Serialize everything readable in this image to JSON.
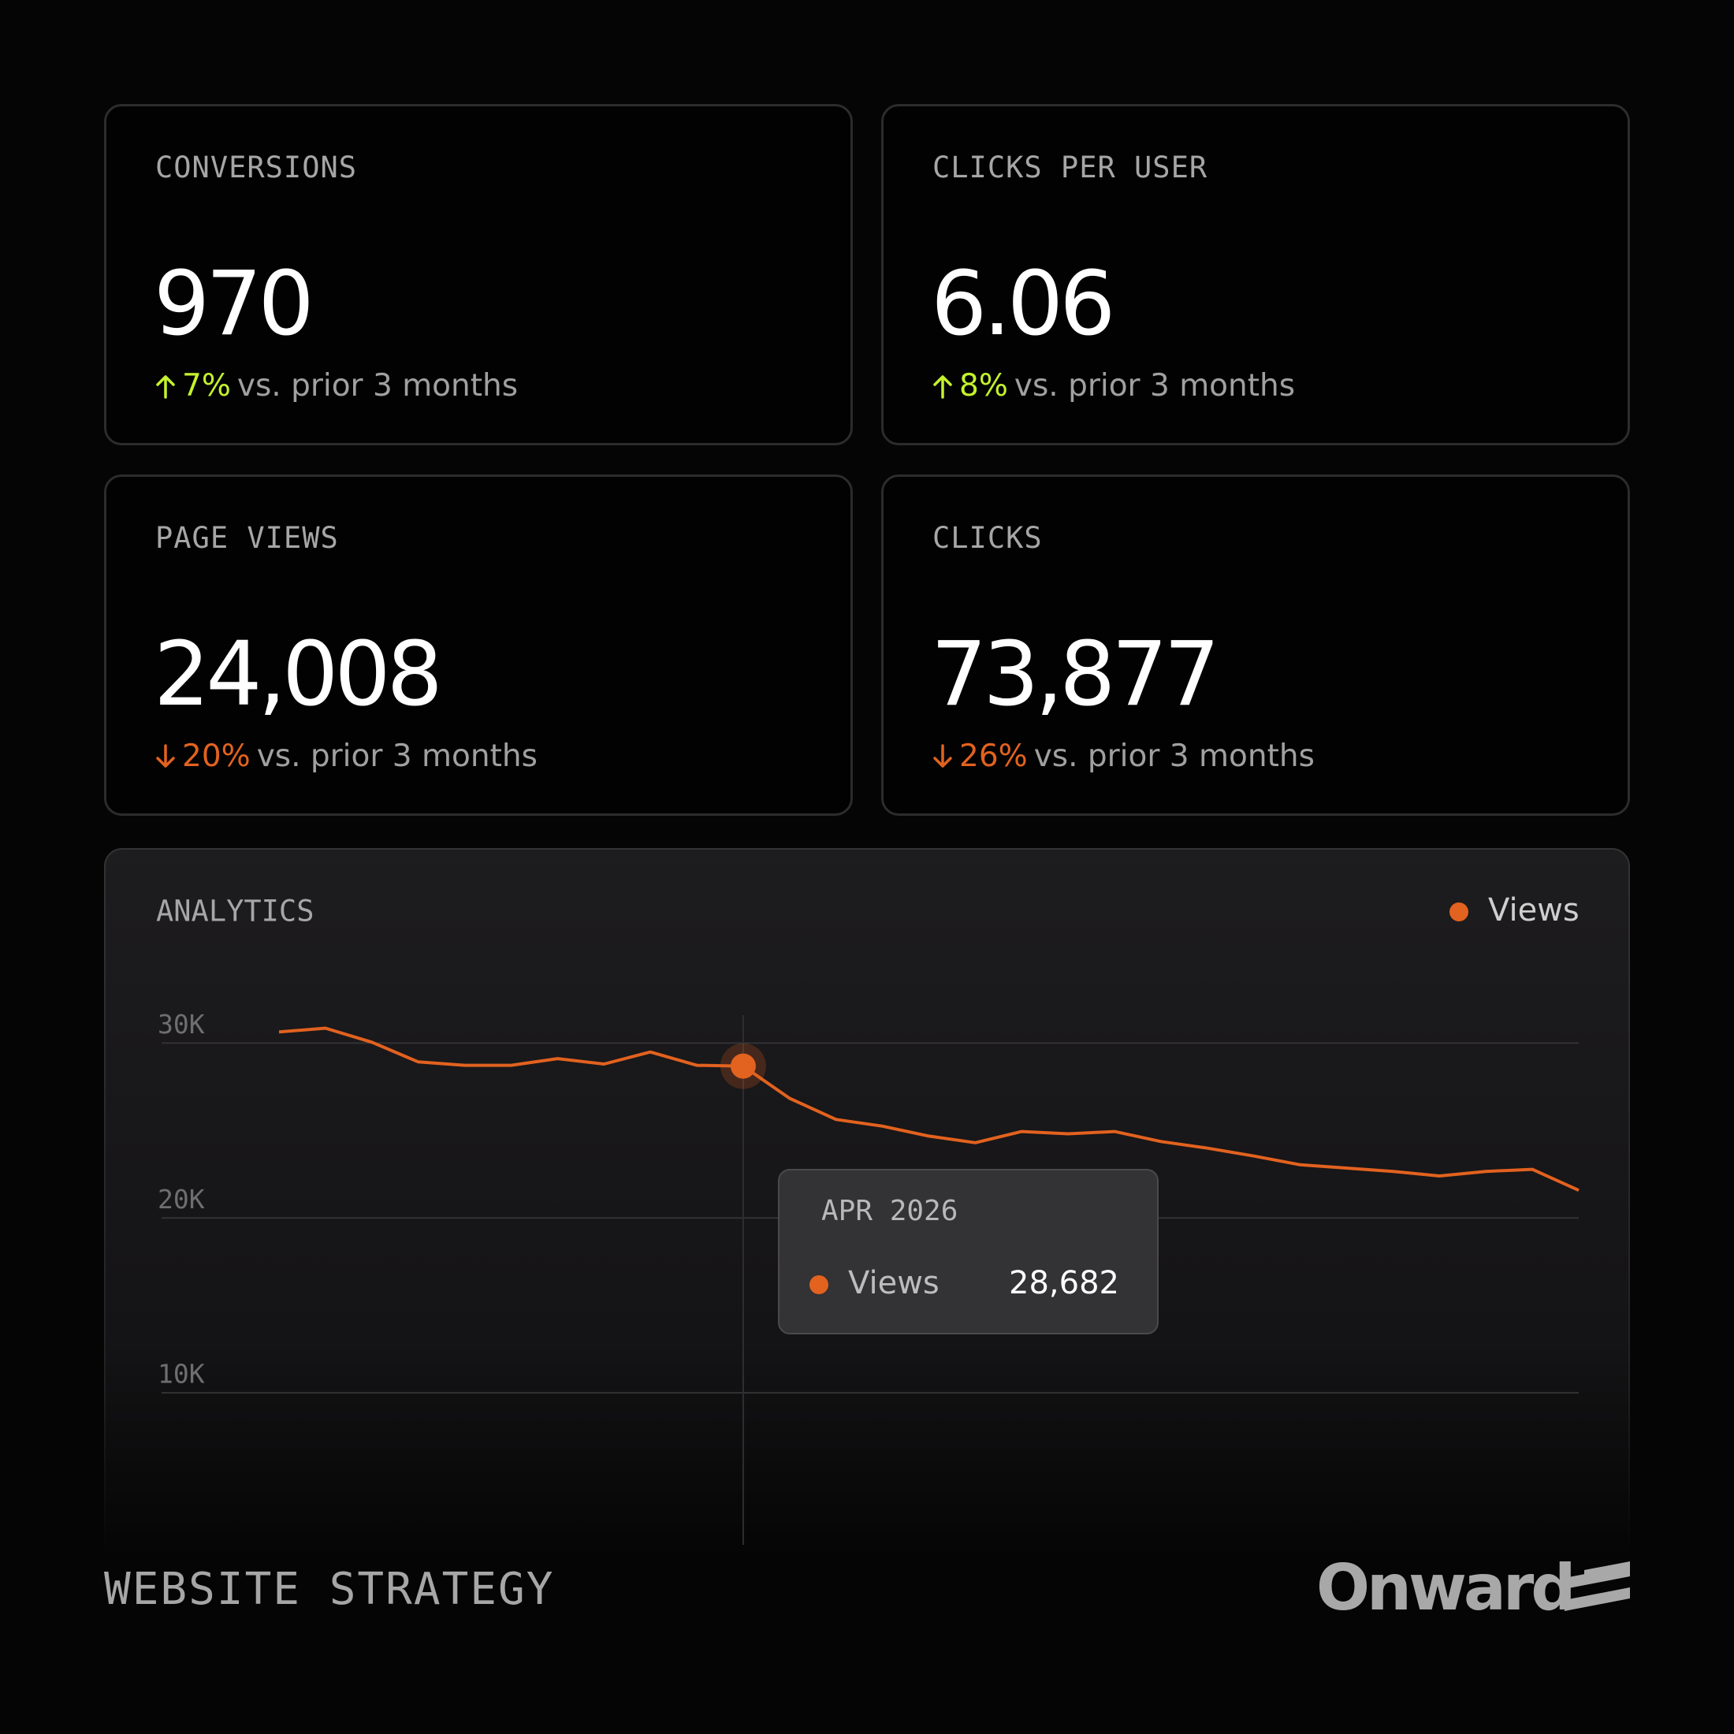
{
  "cards": [
    {
      "label": "CONVERSIONS",
      "value": "970",
      "change": "7%",
      "direction": "up",
      "comparison": "vs. prior 3 months"
    },
    {
      "label": "CLICKS PER USER",
      "value": "6.06",
      "change": "8%",
      "direction": "up",
      "comparison": "vs. prior 3 months"
    },
    {
      "label": "PAGE VIEWS",
      "value": "24,008",
      "change": "20%",
      "direction": "down",
      "comparison": "vs. prior 3 months"
    },
    {
      "label": "CLICKS",
      "value": "73,877",
      "change": "26%",
      "direction": "down",
      "comparison": "vs. prior 3 months"
    }
  ],
  "chart_data": {
    "type": "line",
    "title": "ANALYTICS",
    "categories": [
      null,
      null,
      null,
      null,
      null,
      null,
      null,
      null,
      null,
      null,
      "APR 2026",
      null,
      null,
      null,
      null,
      null,
      null,
      null,
      null,
      null,
      null,
      null,
      null,
      null,
      null,
      null,
      null,
      null,
      null
    ],
    "series": [
      {
        "name": "Views",
        "color": "#e2621f",
        "values": [
          30633,
          30850,
          30050,
          28920,
          28730,
          28730,
          29110,
          28800,
          29490,
          28730,
          28682,
          26840,
          25630,
          25250,
          24680,
          24300,
          24940,
          24810,
          24940,
          24370,
          23990,
          23540,
          23040,
          22850,
          22660,
          22400,
          22660,
          22780,
          21580
        ]
      }
    ],
    "ylim": [
      0,
      32000
    ],
    "yticks": [
      {
        "value": 10000,
        "label": "10K"
      },
      {
        "value": 20000,
        "label": "20K"
      },
      {
        "value": 30000,
        "label": "30K"
      }
    ],
    "grid": true,
    "legend": "top-right",
    "highlight": 10,
    "highlight_label": "28,682"
  },
  "footer": {
    "title": "WEBSITE STRATEGY",
    "brand": "Onward"
  }
}
